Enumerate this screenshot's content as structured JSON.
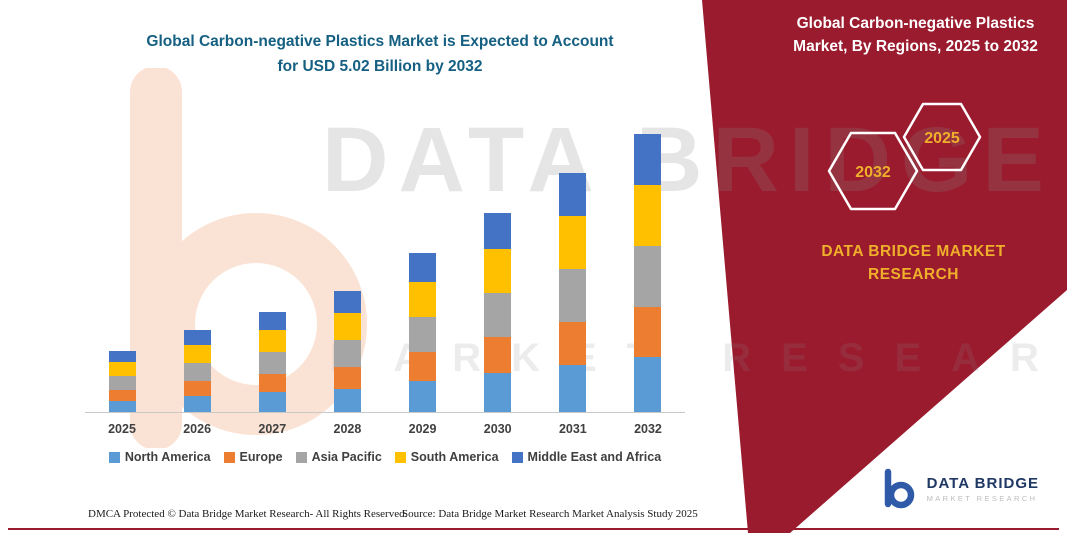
{
  "page": {
    "background": "#FFFFFF",
    "accent_maroon": "#9A1B2E",
    "title_color": "#156082",
    "brand_yellow": "#EFAF2B"
  },
  "header": {
    "line1": "Global Carbon-negative Plastics Market is Expected to Account",
    "line2": "for USD 5.02 Billion by 2032"
  },
  "right_panel": {
    "title": "Global Carbon-negative Plastics Market, By Regions, 2025 to 2032",
    "hexagon_left": "2032",
    "hexagon_right": "2025",
    "brand_line1": "DATA BRIDGE MARKET",
    "brand_line2": "RESEARCH"
  },
  "watermark": {
    "line1": "DATA BRIDGE",
    "line2": "MARKET RESEARCH"
  },
  "logo": {
    "name": "DATA BRIDGE",
    "sub": "MARKET RESEARCH"
  },
  "footer": {
    "dmca": "DMCA Protected © Data Bridge Market Research-  All Rights Reserved.",
    "source": "Source: Data Bridge Market Research  Market Analysis Study 2025"
  },
  "chart_data": {
    "type": "bar",
    "stacked": true,
    "title": "Global Carbon-negative Plastics Market is Expected to Account for USD 5.02 Billion by 2032",
    "categories": [
      "2025",
      "2026",
      "2027",
      "2028",
      "2029",
      "2030",
      "2031",
      "2032"
    ],
    "series": [
      {
        "name": "North America",
        "color": "#5B9BD5",
        "values": [
          0.22,
          0.3,
          0.37,
          0.44,
          0.58,
          0.72,
          0.86,
          1.0
        ]
      },
      {
        "name": "Europe",
        "color": "#ED7D31",
        "values": [
          0.2,
          0.27,
          0.33,
          0.4,
          0.52,
          0.65,
          0.77,
          0.9
        ]
      },
      {
        "name": "Asia Pacific",
        "color": "#A5A5A5",
        "values": [
          0.25,
          0.33,
          0.4,
          0.48,
          0.63,
          0.8,
          0.95,
          1.1
        ]
      },
      {
        "name": "South America",
        "color": "#FFC000",
        "values": [
          0.25,
          0.33,
          0.4,
          0.48,
          0.63,
          0.8,
          0.95,
          1.1
        ]
      },
      {
        "name": "Middle East and Africa",
        "color": "#4472C4",
        "values": [
          0.2,
          0.27,
          0.33,
          0.4,
          0.52,
          0.65,
          0.77,
          0.92
        ]
      }
    ],
    "totals": [
      1.12,
      1.49,
      1.84,
      2.2,
      2.88,
      3.62,
      4.3,
      5.02
    ],
    "unit": "USD billion (estimated from bar heights; no y-axis labels shown)",
    "xlabel": "",
    "ylabel": "",
    "ylim": [
      0,
      5.5
    ],
    "grid": false,
    "legend_position": "bottom"
  }
}
